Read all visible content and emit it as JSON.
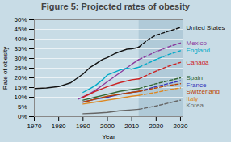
{
  "chart_data": {
    "type": "line",
    "title": "Figure 5: Projected rates of obesity",
    "xlabel": "Year",
    "ylabel": "Rate of obesity",
    "background_color": "#c8dce6",
    "shaded_region": {
      "x_start": 2013,
      "x_end": 2031,
      "color": "#b0cad8"
    },
    "xlim": [
      1970,
      2031
    ],
    "ylim": [
      0.0,
      0.5
    ],
    "xticks": [
      1970,
      1980,
      1990,
      2000,
      2010,
      2020,
      2030
    ],
    "yticks": [
      {
        "value": 0.0,
        "label": "0%"
      },
      {
        "value": 0.05,
        "label": "5%"
      },
      {
        "value": 0.1,
        "label": "10%"
      },
      {
        "value": 0.15,
        "label": "15%"
      },
      {
        "value": 0.2,
        "label": "20%"
      },
      {
        "value": 0.25,
        "label": "25%"
      },
      {
        "value": 0.3,
        "label": "30%"
      },
      {
        "value": 0.35,
        "label": "35%"
      },
      {
        "value": 0.4,
        "label": "40%"
      },
      {
        "value": 0.45,
        "label": "45%"
      },
      {
        "value": 0.5,
        "label": "50%"
      }
    ],
    "grid": "y",
    "series": [
      {
        "name": "United States",
        "color": "#111111",
        "line_style": "solid",
        "x": [
          1970,
          1975,
          1980,
          1985,
          1990,
          1993,
          1995,
          1998,
          2000,
          2003,
          2005,
          2008,
          2010,
          2012,
          2013
        ],
        "values": [
          0.145,
          0.148,
          0.155,
          0.175,
          0.22,
          0.255,
          0.27,
          0.295,
          0.305,
          0.325,
          0.335,
          0.348,
          0.35,
          0.355,
          0.36
        ]
      },
      {
        "name": "United States",
        "color": "#111111",
        "line_style": "dashed",
        "x": [
          2013,
          2017,
          2020,
          2025,
          2030
        ],
        "values": [
          0.36,
          0.4,
          0.42,
          0.44,
          0.46
        ]
      },
      {
        "name": "Mexico",
        "color": "#8b3a9e",
        "line_style": "solid",
        "x": [
          1988,
          1993,
          1995,
          2000,
          2005,
          2010,
          2013
        ],
        "values": [
          0.09,
          0.12,
          0.135,
          0.18,
          0.225,
          0.27,
          0.295
        ]
      },
      {
        "name": "Mexico",
        "color": "#8b3a9e",
        "line_style": "dashed",
        "x": [
          2013,
          2020,
          2025,
          2030
        ],
        "values": [
          0.295,
          0.335,
          0.36,
          0.38
        ]
      },
      {
        "name": "England",
        "color": "#00aac8",
        "line_style": "solid",
        "x": [
          1990,
          1993,
          1995,
          1998,
          2000,
          2003,
          2005,
          2008,
          2010,
          2012,
          2013
        ],
        "values": [
          0.125,
          0.145,
          0.16,
          0.19,
          0.215,
          0.23,
          0.24,
          0.25,
          0.245,
          0.252,
          0.255
        ]
      },
      {
        "name": "England",
        "color": "#00aac8",
        "line_style": "dashed",
        "x": [
          2013,
          2020,
          2025,
          2030
        ],
        "values": [
          0.255,
          0.295,
          0.32,
          0.34
        ]
      },
      {
        "name": "Canada",
        "color": "#cc2222",
        "line_style": "solid",
        "x": [
          1990,
          1995,
          2000,
          2005,
          2010,
          2013
        ],
        "values": [
          0.1,
          0.13,
          0.155,
          0.175,
          0.19,
          0.195
        ]
      },
      {
        "name": "Canada",
        "color": "#cc2222",
        "line_style": "dashed",
        "x": [
          2013,
          2020,
          2025,
          2030
        ],
        "values": [
          0.195,
          0.235,
          0.26,
          0.28
        ]
      },
      {
        "name": "Spain",
        "color": "#336633",
        "line_style": "solid",
        "x": [
          1990,
          1995,
          2000,
          2005,
          2010,
          2013
        ],
        "values": [
          0.085,
          0.1,
          0.115,
          0.13,
          0.14,
          0.145
        ]
      },
      {
        "name": "Spain",
        "color": "#336633",
        "line_style": "dashed",
        "x": [
          2013,
          2020,
          2025,
          2030
        ],
        "values": [
          0.145,
          0.17,
          0.185,
          0.2
        ]
      },
      {
        "name": "France",
        "color": "#3333bb",
        "line_style": "solid",
        "x": [
          1990,
          1995,
          2000,
          2005,
          2010,
          2013
        ],
        "values": [
          0.075,
          0.09,
          0.1,
          0.115,
          0.125,
          0.13
        ]
      },
      {
        "name": "France",
        "color": "#3333bb",
        "line_style": "dashed",
        "x": [
          2013,
          2020,
          2025,
          2030
        ],
        "values": [
          0.13,
          0.155,
          0.17,
          0.185
        ]
      },
      {
        "name": "Switzerland",
        "color": "#bb4400",
        "line_style": "solid",
        "x": [
          1990,
          1995,
          2000,
          2005,
          2010,
          2013
        ],
        "values": [
          0.075,
          0.09,
          0.105,
          0.115,
          0.125,
          0.13
        ]
      },
      {
        "name": "Switzerland",
        "color": "#bb4400",
        "line_style": "dashed",
        "x": [
          2013,
          2020,
          2025,
          2030
        ],
        "values": [
          0.13,
          0.148,
          0.16,
          0.17
        ]
      },
      {
        "name": "Italy",
        "color": "#dd8822",
        "line_style": "solid",
        "x": [
          1990,
          1995,
          2000,
          2005,
          2010,
          2013
        ],
        "values": [
          0.065,
          0.075,
          0.085,
          0.095,
          0.105,
          0.11
        ]
      },
      {
        "name": "Italy",
        "color": "#dd8822",
        "line_style": "dashed",
        "x": [
          2013,
          2020,
          2025,
          2030
        ],
        "values": [
          0.11,
          0.125,
          0.138,
          0.148
        ]
      },
      {
        "name": "Korea",
        "color": "#666666",
        "line_style": "solid",
        "x": [
          1990,
          1995,
          2000,
          2005,
          2010,
          2013
        ],
        "values": [
          0.015,
          0.018,
          0.022,
          0.03,
          0.035,
          0.038
        ]
      },
      {
        "name": "Korea",
        "color": "#666666",
        "line_style": "dashed",
        "x": [
          2013,
          2020,
          2025,
          2030
        ],
        "values": [
          0.038,
          0.055,
          0.07,
          0.085
        ]
      }
    ]
  }
}
